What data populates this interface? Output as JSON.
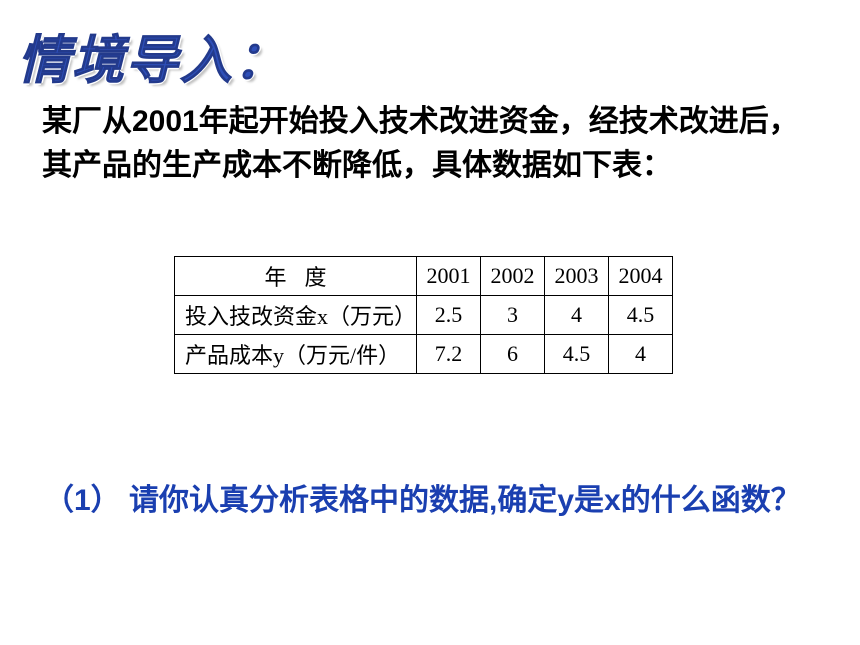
{
  "title": "情境导入：",
  "body": "某厂从2001年起开始投入技术改进资金，经技术改进后，其产品的生产成本不断降低，具体数据如下表：",
  "table": {
    "header_row_label": "年度",
    "years": [
      "2001",
      "2002",
      "2003",
      "2004"
    ],
    "rows": [
      {
        "label": "投入技改资金x（万元）",
        "values": [
          "2.5",
          "3",
          "4",
          "4.5"
        ]
      },
      {
        "label": "产品成本y（万元/件）",
        "values": [
          "7.2",
          "6",
          "4.5",
          "4"
        ]
      }
    ],
    "border_color": "#000000",
    "font_family": "SimSun",
    "cell_fontsize": 22
  },
  "question": "（1） 请你认真分析表格中的数据,确定y是x的什么函数？",
  "colors": {
    "title_color": "#2e4fb8",
    "body_color": "#000000",
    "question_color": "#1a3fb0",
    "background": "#ffffff"
  },
  "typography": {
    "title_fontsize": 52,
    "body_fontsize": 30,
    "question_fontsize": 30
  }
}
